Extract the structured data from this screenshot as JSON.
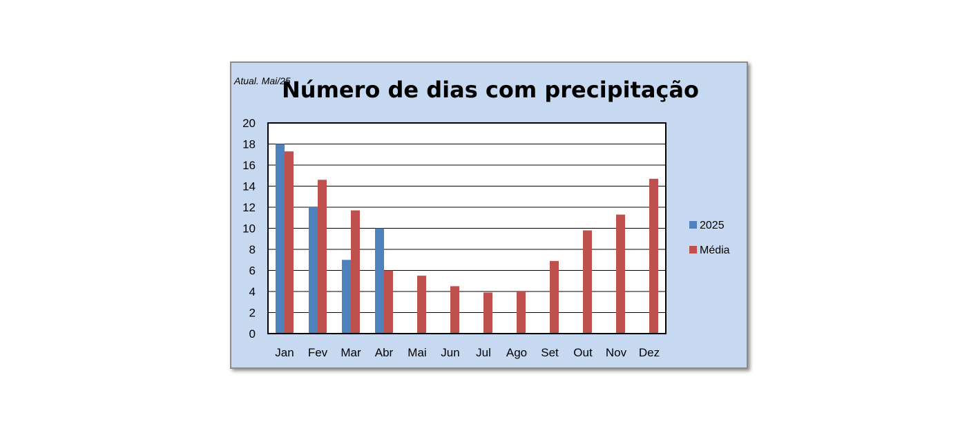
{
  "note": "Atual. Mai/25",
  "chart_data": {
    "type": "bar",
    "title": "Número de dias com precipitação",
    "categories": [
      "Jan",
      "Fev",
      "Mar",
      "Abr",
      "Mai",
      "Jun",
      "Jul",
      "Ago",
      "Set",
      "Out",
      "Nov",
      "Dez"
    ],
    "series": [
      {
        "name": "2025",
        "color": "#4f81bd",
        "values": [
          18,
          12,
          7,
          10,
          null,
          null,
          null,
          null,
          null,
          null,
          null,
          null
        ]
      },
      {
        "name": "Média",
        "color": "#c0504d",
        "values": [
          17.3,
          14.6,
          11.7,
          6,
          5.5,
          4.5,
          3.9,
          4,
          6.9,
          9.8,
          11.3,
          14.7
        ]
      }
    ],
    "yticks": [
      "0",
      "2",
      "4",
      "6",
      "8",
      "10",
      "12",
      "14",
      "16",
      "18",
      "20"
    ],
    "ylim": [
      0,
      20
    ],
    "grid": true,
    "legend": "right"
  }
}
